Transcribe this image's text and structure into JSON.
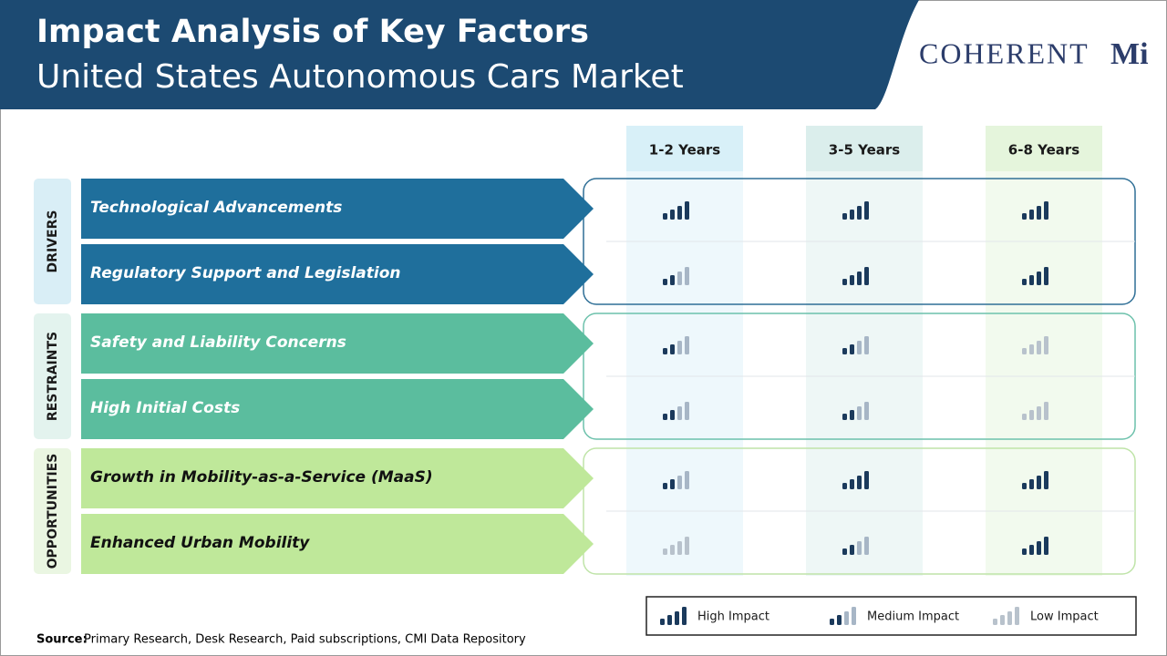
{
  "header": {
    "title": "Impact Analysis of Key Factors",
    "subtitle": "United States Autonomous Cars Market",
    "logo": "COHERENT",
    "logo_suffix": "Mi"
  },
  "columns": [
    "1-2 Years",
    "3-5 Years",
    "6-8 Years"
  ],
  "groups": [
    {
      "label": "DRIVERS",
      "rows": [
        {
          "factor": "Technological  Advancements",
          "impacts": [
            0,
            0,
            0
          ]
        },
        {
          "factor": "Regulatory  Support  and  Legislation",
          "impacts": [
            1,
            0,
            0
          ]
        }
      ]
    },
    {
      "label": "RESTRAINTS",
      "rows": [
        {
          "factor": "Safety  and  Liability  Concerns",
          "impacts": [
            1,
            1,
            2
          ]
        },
        {
          "factor": "High  Initial  Costs",
          "impacts": [
            1,
            1,
            2
          ]
        }
      ]
    },
    {
      "label": "OPPORTUNITIES",
      "rows": [
        {
          "factor": "Growth  in  Mobility-as-a-Service  (MaaS)",
          "impacts": [
            1,
            0,
            0
          ]
        },
        {
          "factor": "Enhanced  Urban  Mobility",
          "impacts": [
            2,
            1,
            0
          ]
        }
      ]
    }
  ],
  "legend": [
    "High Impact",
    "Medium Impact",
    "Low Impact"
  ],
  "source": {
    "label": "Source:",
    "text": "Primary Research, Desk Research, Paid subscriptions, CMI Data Repository"
  }
}
